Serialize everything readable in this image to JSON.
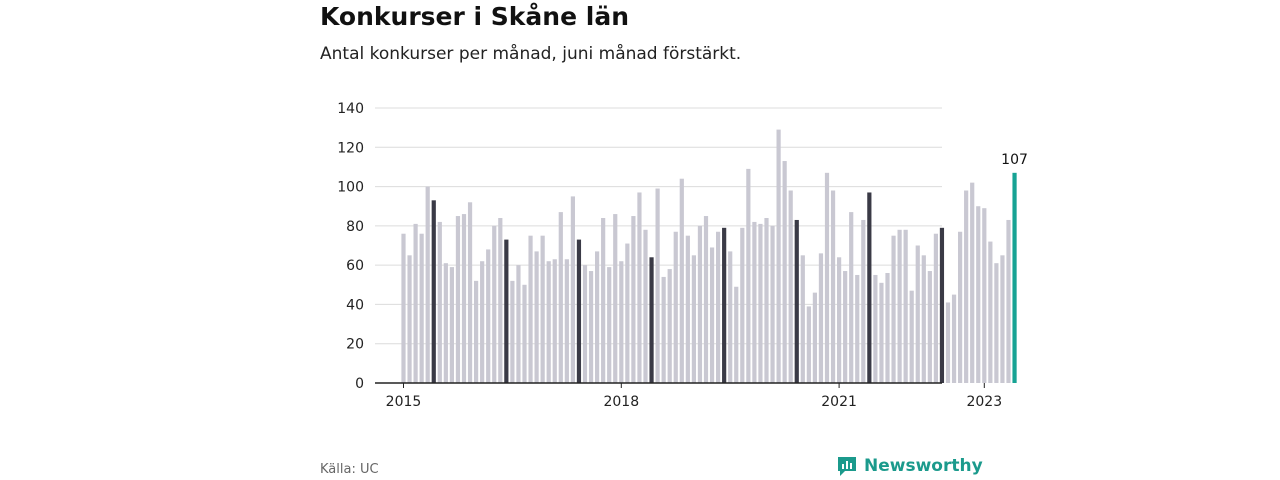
{
  "title": "Konkurser i Skåne län",
  "subtitle": "Antal konkurser per månad, juni månad förstärkt.",
  "source": "Källa: UC",
  "brand": "Newsworthy",
  "colors": {
    "bar": "#c9c8d2",
    "june": "#3a3a46",
    "latest": "#17a394",
    "grid": "#dcdcdc",
    "axis": "#222222"
  },
  "chart_data": {
    "type": "bar",
    "x_ticks": [
      "2015",
      "2018",
      "2021",
      "2023"
    ],
    "ylim": [
      0,
      140
    ],
    "y_ticks": [
      0,
      20,
      40,
      60,
      80,
      100,
      120,
      140
    ],
    "grid": true,
    "highlight_month": "juni",
    "last_value_label": "107",
    "start": "2015-01",
    "end": "2023-06",
    "values": [
      76,
      65,
      81,
      76,
      100,
      93,
      82,
      61,
      59,
      85,
      86,
      92,
      52,
      62,
      68,
      80,
      84,
      73,
      52,
      60,
      50,
      75,
      67,
      75,
      62,
      63,
      87,
      63,
      95,
      73,
      60,
      57,
      67,
      84,
      59,
      86,
      62,
      71,
      85,
      97,
      78,
      64,
      99,
      54,
      58,
      77,
      104,
      75,
      65,
      80,
      85,
      69,
      77,
      79,
      67,
      49,
      79,
      109,
      82,
      81,
      84,
      80,
      129,
      113,
      98,
      83,
      65,
      39,
      46,
      66,
      107,
      98,
      64,
      57,
      87,
      55,
      83,
      97,
      55,
      51,
      56,
      75,
      78,
      78,
      47,
      70,
      65,
      57,
      76,
      79,
      41,
      45,
      77,
      98,
      102,
      90,
      89,
      72,
      61,
      65,
      83,
      107
    ]
  }
}
